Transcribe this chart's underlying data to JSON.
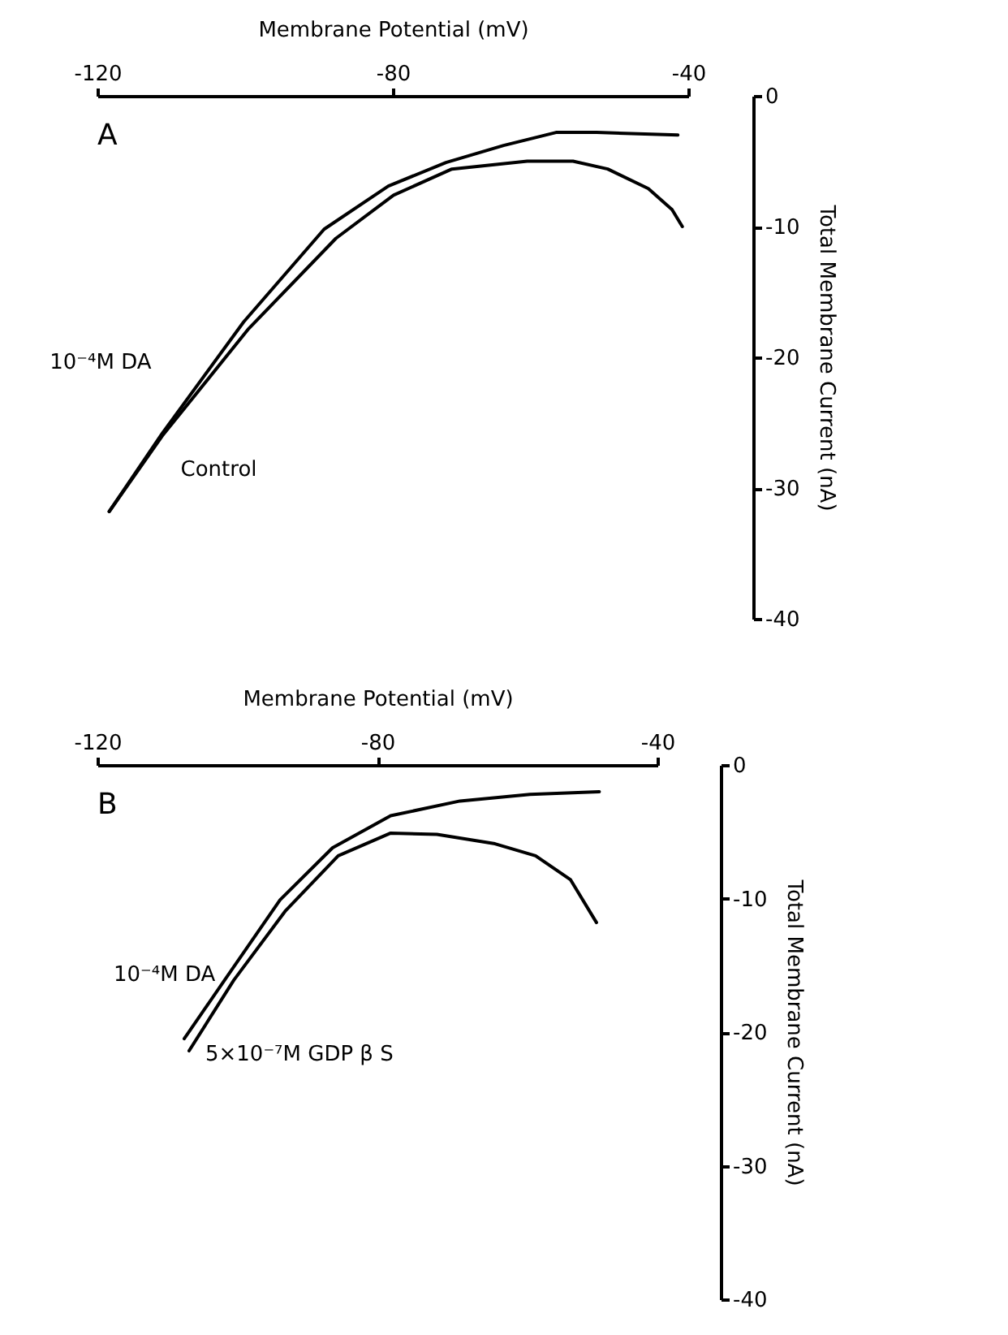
{
  "chart_data": [
    {
      "type": "line",
      "xlabel": "Membrane Potential (mV)",
      "ylabel": "Total Membrane Current (nA)",
      "xlim": [
        -120,
        -40
      ],
      "xticks": [
        -120,
        -80,
        -40
      ],
      "ylim": [
        -40,
        0
      ],
      "yticks": [
        0,
        -10,
        -20,
        -30,
        -40
      ],
      "annotations": [
        "A"
      ],
      "series": [
        {
          "name": "10⁻⁴M DA",
          "color": "#000000",
          "x": [
            -118.4,
            -111.2,
            -100.2,
            -89.3,
            -80.6,
            -72.8,
            -65,
            -57.9,
            -52.4,
            -41.4
          ],
          "values": [
            -31.8,
            -25.8,
            -17.3,
            -10.2,
            -6.9,
            -5.1,
            -3.8,
            -2.8,
            -2.8,
            -3.0
          ]
        },
        {
          "name": "Control",
          "color": "#000000",
          "x": [
            -118.4,
            -111.2,
            -99.5,
            -87.7,
            -79.9,
            -72,
            -61.8,
            -55.6,
            -50.9,
            -45.4,
            -42.2,
            -40.8
          ],
          "values": [
            -31.8,
            -26,
            -17.8,
            -10.9,
            -7.6,
            -5.6,
            -5.0,
            -5.0,
            -5.6,
            -7.1,
            -8.7,
            -10.0
          ]
        }
      ]
    },
    {
      "type": "line",
      "xlabel": "Membrane Potential (mV)",
      "ylabel": "Total Membrane Current (nA)",
      "xlim": [
        -120,
        -40
      ],
      "xticks": [
        -120,
        -80,
        -40
      ],
      "ylim": [
        -40,
        0
      ],
      "yticks": [
        0,
        -10,
        -20,
        -30,
        -40
      ],
      "annotations": [
        "B"
      ],
      "series": [
        {
          "name": "10⁻⁴M DA",
          "color": "#000000",
          "x": [
            -107.6,
            -101.3,
            -93.9,
            -86.4,
            -78.1,
            -68.2,
            -58.2,
            -48.3
          ],
          "values": [
            -20.5,
            -15.7,
            -10.1,
            -6.2,
            -3.8,
            -2.7,
            -2.2,
            -2.0
          ]
        },
        {
          "name": "5×10⁻⁷M GDP β S",
          "color": "#000000",
          "x": [
            -106.9,
            -100.5,
            -93.1,
            -85.6,
            -78.1,
            -71.5,
            -63.2,
            -57.4,
            -52.4,
            -48.7
          ],
          "values": [
            -21.4,
            -16.1,
            -10.9,
            -6.8,
            -5.1,
            -5.2,
            -5.9,
            -6.8,
            -8.6,
            -11.8
          ]
        }
      ]
    }
  ]
}
